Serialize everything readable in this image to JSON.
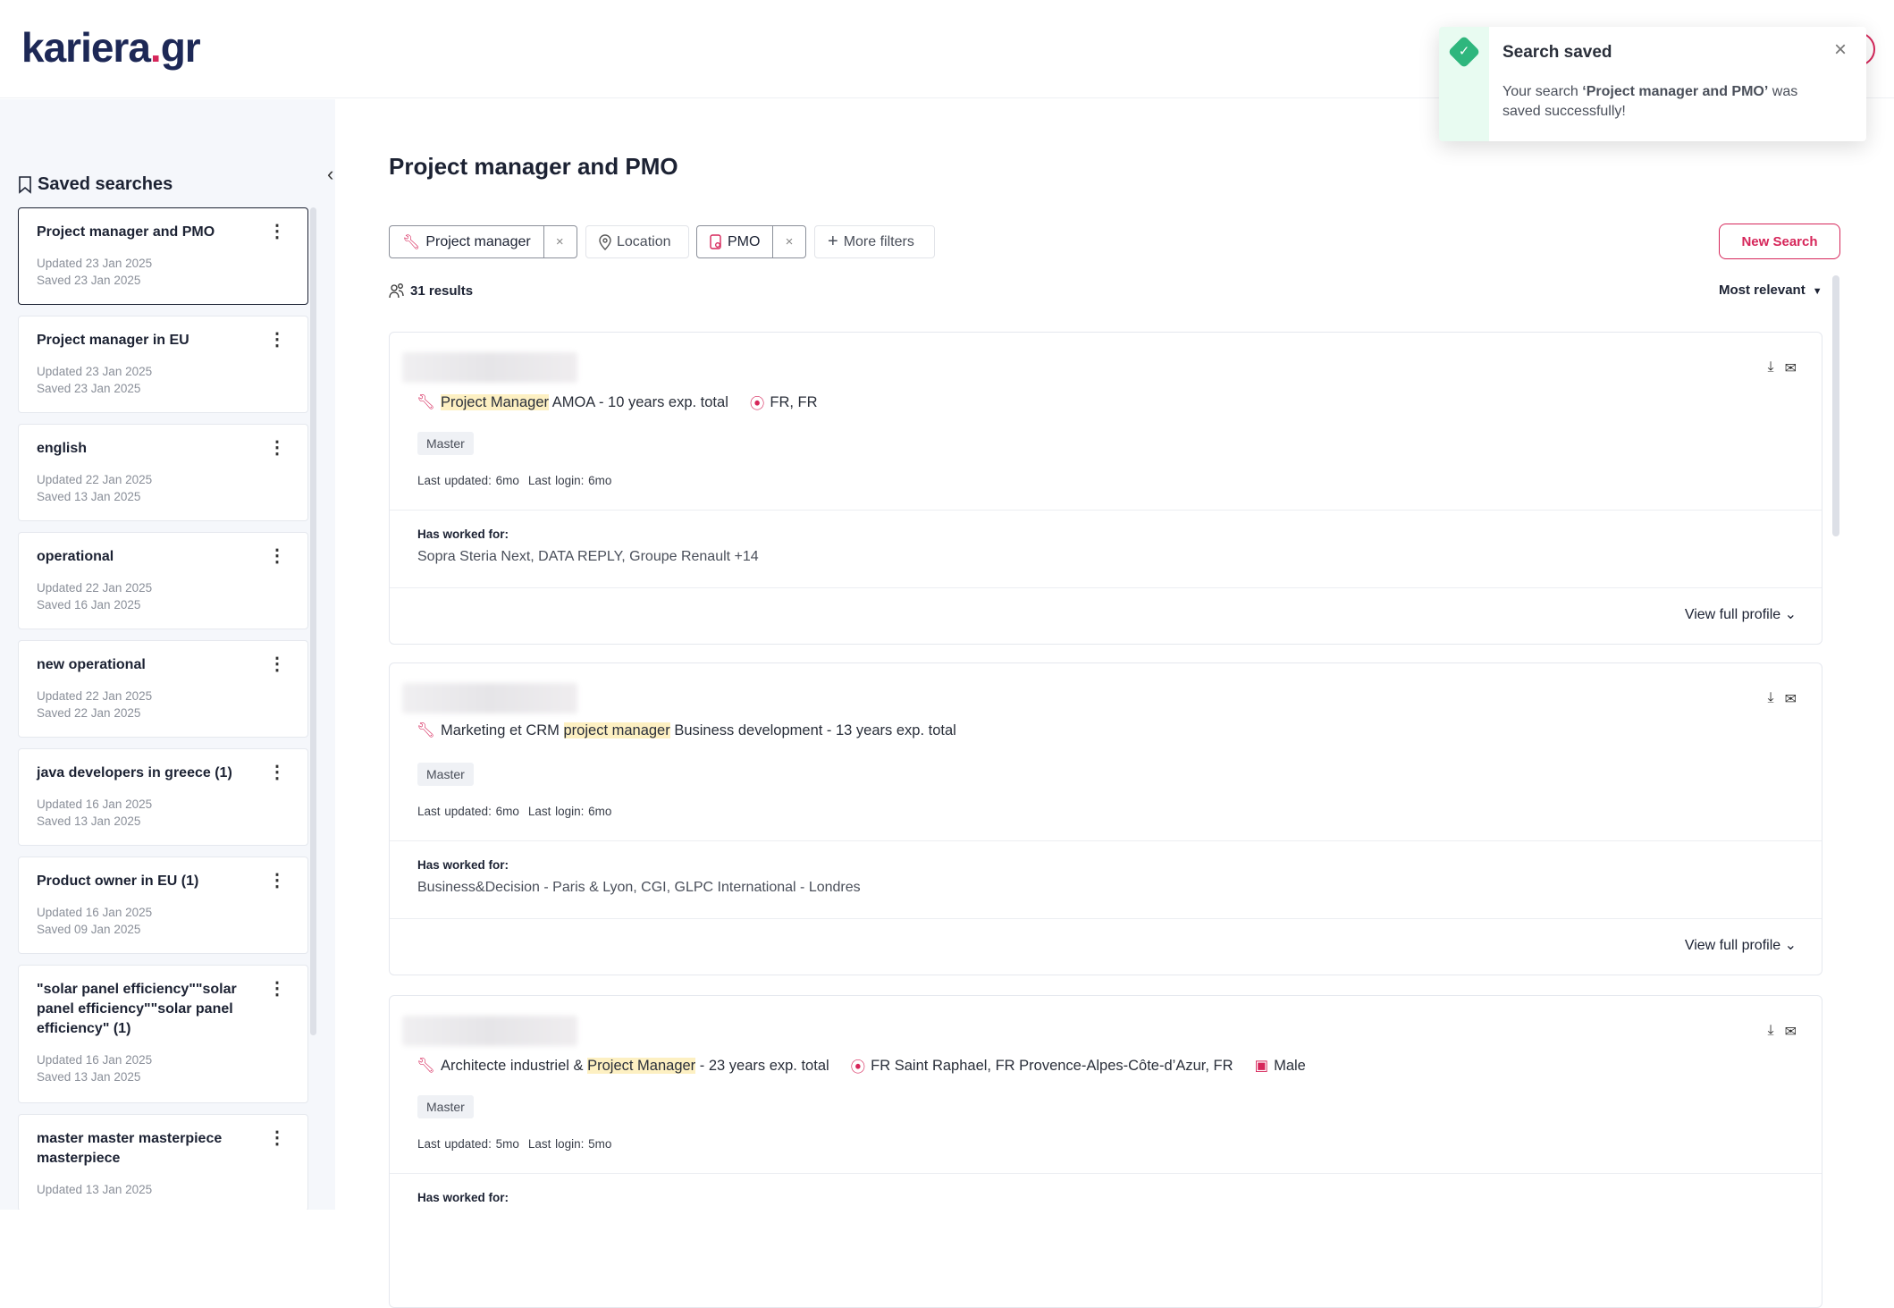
{
  "header": {
    "logo_main": "kariera",
    "logo_dot": ".",
    "logo_tld": "gr"
  },
  "sidebar": {
    "title": "Saved searches",
    "items": [
      {
        "name": "Project manager and PMO",
        "updated": "Updated 23 Jan 2025",
        "saved": "Saved 23 Jan 2025",
        "active": true
      },
      {
        "name": "Project manager in EU",
        "updated": "Updated 23 Jan 2025",
        "saved": "Saved 23 Jan 2025"
      },
      {
        "name": "english",
        "updated": "Updated 22 Jan 2025",
        "saved": "Saved 13 Jan 2025"
      },
      {
        "name": "operational",
        "updated": "Updated 22 Jan 2025",
        "saved": "Saved 16 Jan 2025"
      },
      {
        "name": "new operational",
        "updated": "Updated 22 Jan 2025",
        "saved": "Saved 22 Jan 2025"
      },
      {
        "name": "java developers in greece (1)",
        "updated": "Updated 16 Jan 2025",
        "saved": "Saved 13 Jan 2025"
      },
      {
        "name": "Product owner in EU (1)",
        "updated": "Updated 16 Jan 2025",
        "saved": "Saved 09 Jan 2025"
      },
      {
        "name": "\"solar panel efficiency\"\"solar panel efficiency\"\"solar panel efficiency\" (1)",
        "updated": "Updated 16 Jan 2025",
        "saved": "Saved 13 Jan 2025"
      },
      {
        "name": "master master masterpiece masterpiece",
        "updated": "Updated 13 Jan 2025",
        "saved": ""
      }
    ]
  },
  "main": {
    "title": "Project manager and PMO",
    "filters": {
      "keyword": "Project manager",
      "location": "Location",
      "pmo": "PMO",
      "more": "More filters",
      "remove": "×"
    },
    "new_search": "New Search",
    "results": "31 results",
    "sort": "Most relevant",
    "cards": [
      {
        "title_hl": "Project Manager",
        "title_pre": "",
        "title_post": " AMOA - 10 years exp. total",
        "location": "FR, FR",
        "gender": "",
        "education": "Master",
        "last_updated": "Last updated: 6mo",
        "last_login": "Last login: 6mo",
        "worked_label": "Has worked for:",
        "companies": "Sopra Steria Next, DATA REPLY, Groupe Renault +14",
        "view": "View full profile"
      },
      {
        "title_pre": "Marketing et CRM ",
        "title_hl": "project manager",
        "title_post": " Business development - 13 years exp. total",
        "location": "",
        "gender": "",
        "education": "Master",
        "last_updated": "Last updated: 6mo",
        "last_login": "Last login: 6mo",
        "worked_label": "Has worked for:",
        "companies": "Business&Decision - Paris & Lyon, CGI, GLPC International - Londres",
        "view": "View full profile"
      },
      {
        "title_pre": "Architecte industriel & ",
        "title_hl": "Project Manager",
        "title_post": " - 23 years exp. total",
        "location": "FR Saint Raphael, FR Provence-Alpes-Côte-d’Azur, FR",
        "gender": "Male",
        "education": "Master",
        "last_updated": "Last updated: 5mo",
        "last_login": "Last login: 5mo",
        "worked_label": "Has worked for:",
        "companies": "",
        "view": ""
      }
    ]
  },
  "toast": {
    "title": "Search saved",
    "msg_pre": "Your search ",
    "msg_bold": "‘Project manager and PMO’",
    "msg_post": " was saved successfully!"
  },
  "colors": {
    "brand": "#d6265a",
    "navy": "#1d2856",
    "success": "#2eb67d",
    "highlight": "#fdf0c2"
  }
}
